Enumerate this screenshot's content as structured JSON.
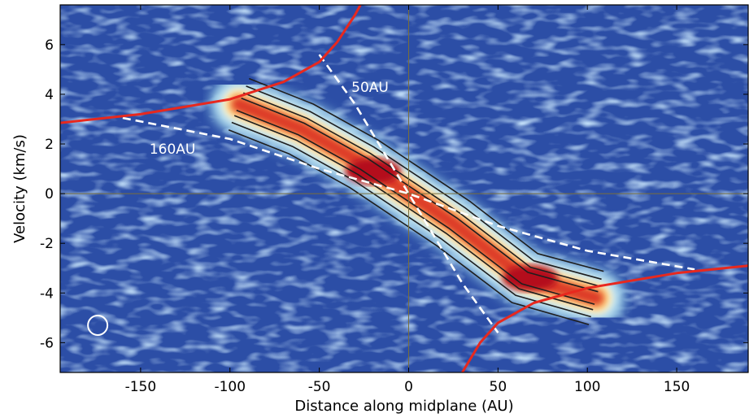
{
  "chart_data": {
    "type": "heatmap",
    "title": "",
    "xlabel": "Distance along midplane (AU)",
    "ylabel": "Velocity (km/s)",
    "xlim": [
      -195,
      190
    ],
    "ylim": [
      -7.2,
      7.6
    ],
    "x_ticks": [
      -150,
      -100,
      -50,
      0,
      50,
      100,
      150
    ],
    "y_ticks": [
      6,
      4,
      2,
      0,
      -2,
      -4,
      -6
    ],
    "x_tick_labels": [
      "-150",
      "-100",
      "-50",
      "0",
      "50",
      "100",
      "150"
    ],
    "y_tick_labels": [
      "6",
      "4",
      "2",
      "0",
      "-2",
      "-4",
      "-6"
    ],
    "colormap": "blue-white-red (RdYlBu reversed)",
    "grid": false,
    "legend": "none",
    "emission_ridge": [
      {
        "x": -95,
        "y": 3.6
      },
      {
        "x": -60,
        "y": 2.6
      },
      {
        "x": -25,
        "y": 1.2
      },
      {
        "x": 0,
        "y": 0.0
      },
      {
        "x": 25,
        "y": -1.2
      },
      {
        "x": 65,
        "y": -3.4
      },
      {
        "x": 105,
        "y": -4.2
      }
    ],
    "peak_emission": [
      {
        "x": -20,
        "y": 0.9,
        "level": "high"
      },
      {
        "x": 68,
        "y": -3.4,
        "level": "high"
      }
    ],
    "keplerian_envelope": {
      "color": "#e8281e",
      "left_branch": [
        {
          "x": -195,
          "y": 2.85
        },
        {
          "x": -150,
          "y": 3.2
        },
        {
          "x": -100,
          "y": 3.8
        },
        {
          "x": -70,
          "y": 4.5
        },
        {
          "x": -50,
          "y": 5.3
        },
        {
          "x": -40,
          "y": 6.1
        },
        {
          "x": -30,
          "y": 7.2
        },
        {
          "x": -27,
          "y": 7.6
        }
      ],
      "right_branch": [
        {
          "x": 30,
          "y": -7.2
        },
        {
          "x": 40,
          "y": -6.0
        },
        {
          "x": 50,
          "y": -5.2
        },
        {
          "x": 70,
          "y": -4.4
        },
        {
          "x": 100,
          "y": -3.8
        },
        {
          "x": 150,
          "y": -3.2
        },
        {
          "x": 190,
          "y": -2.9
        }
      ]
    },
    "rotation_lines": [
      {
        "label": "160AU",
        "color": "#ffffff",
        "style": "dashed",
        "points": [
          {
            "x": -160,
            "y": 3.05
          },
          {
            "x": -100,
            "y": 2.2
          },
          {
            "x": -50,
            "y": 1.0
          },
          {
            "x": 0,
            "y": 0.0
          },
          {
            "x": 50,
            "y": -1.3
          },
          {
            "x": 100,
            "y": -2.3
          },
          {
            "x": 160,
            "y": -3.05
          }
        ]
      },
      {
        "label": "50AU",
        "color": "#ffffff",
        "style": "dashed",
        "points": [
          {
            "x": -50,
            "y": 5.6
          },
          {
            "x": -30,
            "y": 3.6
          },
          {
            "x": -15,
            "y": 1.8
          },
          {
            "x": 0,
            "y": 0.0
          },
          {
            "x": 15,
            "y": -1.8
          },
          {
            "x": 30,
            "y": -3.6
          },
          {
            "x": 50,
            "y": -5.6
          }
        ]
      }
    ],
    "annotations": [
      {
        "text": "50AU",
        "x": -32,
        "y": 4.1
      },
      {
        "text": "160AU",
        "x": -145,
        "y": 1.6
      }
    ],
    "beam_marker": {
      "x": -174,
      "y": -5.3,
      "color": "#ffffff"
    },
    "reference_lines": [
      {
        "axis": "x",
        "value": 0
      },
      {
        "axis": "y",
        "value": 0
      }
    ]
  }
}
